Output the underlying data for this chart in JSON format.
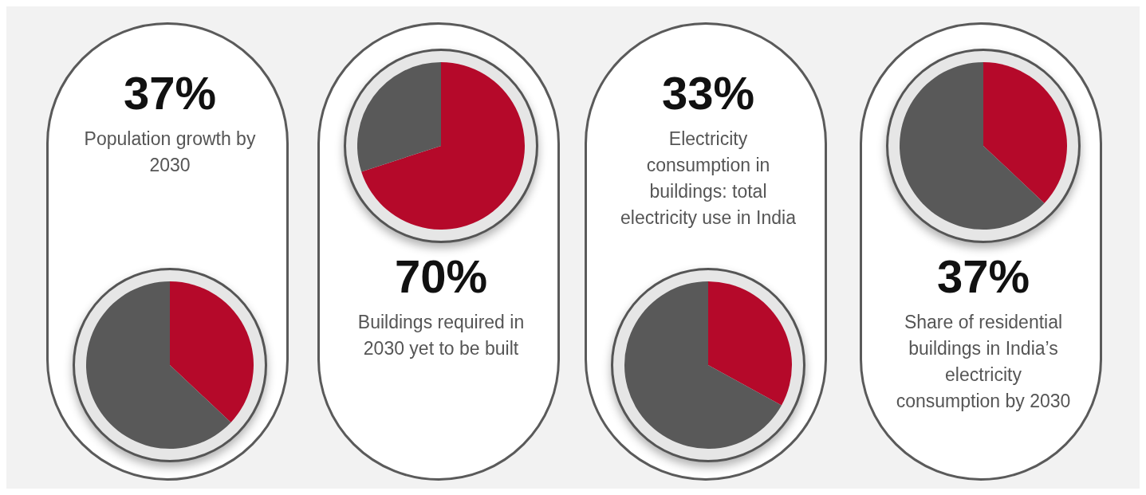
{
  "chart_data": [
    {
      "type": "pie",
      "title": "37%",
      "subtitle": "Population growth by 2030",
      "categories": [
        null,
        null
      ],
      "values": [
        37,
        63
      ],
      "colors": [
        "#b5092a",
        "#595959"
      ]
    },
    {
      "type": "pie",
      "title": "70%",
      "subtitle": "Buildings required in 2030 yet to be built",
      "categories": [
        null,
        null
      ],
      "values": [
        70,
        30
      ],
      "colors": [
        "#b5092a",
        "#595959"
      ]
    },
    {
      "type": "pie",
      "title": "33%",
      "subtitle": "Electricity consumption in buildings: total electricity use in India",
      "categories": [
        null,
        null
      ],
      "values": [
        33,
        67
      ],
      "colors": [
        "#b5092a",
        "#595959"
      ]
    },
    {
      "type": "pie",
      "title": "37%",
      "subtitle": "Share of residential buildings in India’s electricity consumption by 2030",
      "categories": [
        null,
        null
      ],
      "values": [
        37,
        63
      ],
      "colors": [
        "#b5092a",
        "#595959"
      ]
    }
  ]
}
